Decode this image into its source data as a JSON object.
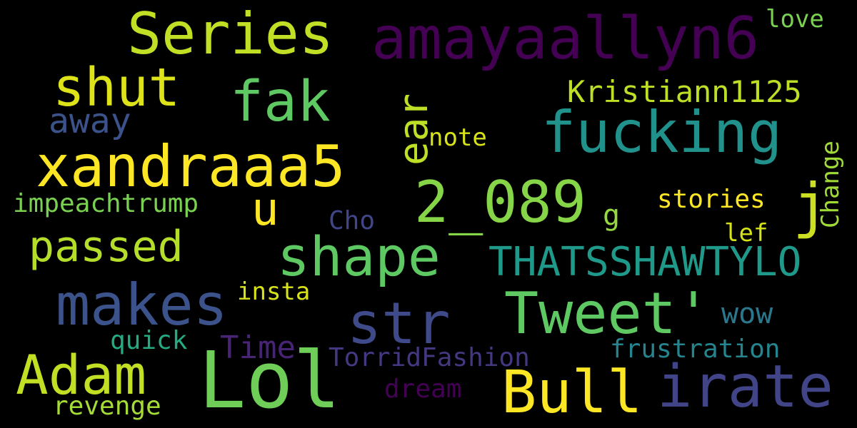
{
  "words": {
    "amayaallyn6": "amayaallyn6",
    "series": "Series",
    "love": "love",
    "shut": "shut",
    "fak": "fak",
    "kristiann": "Kristiann1125",
    "away": "away",
    "fucking": "fucking",
    "note": "note",
    "xandraaa5": "xandraaa5",
    "two_089": "2_089",
    "stories": "stories",
    "impeach": "impeachtrump",
    "cho": "Cho",
    "lef": "lef",
    "passed": "passed",
    "shape": "shape",
    "thatss": "THATSSHAWTYLO",
    "insta": "insta",
    "makes": "makes",
    "str": "str",
    "tweet": "Tweet'",
    "wow": "wow",
    "quick": "quick",
    "time": "Time",
    "frustration": "frustration",
    "torrid": "TorridFashion",
    "adam": "Adam",
    "lol": "Lol",
    "irate": "irate",
    "bull": "Bull",
    "dream": "dream",
    "revenge": "revenge",
    "u": "u",
    "j": "j",
    "g": "g",
    "ear": "ear",
    "change": "Change"
  },
  "colors": {
    "background": "#000000",
    "palette": "viridis"
  }
}
